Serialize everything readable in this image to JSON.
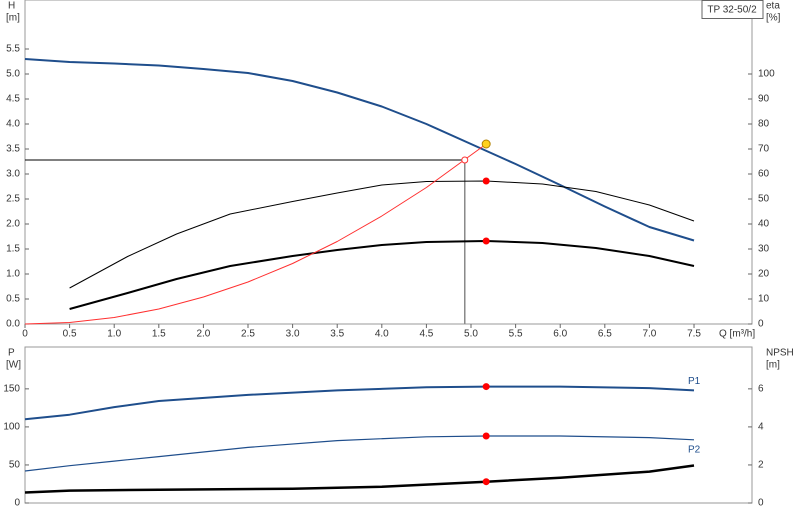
{
  "chart_data": [
    {
      "type": "line",
      "title": "TP 32-50/2",
      "ylabel": "H",
      "yunit": "[m]",
      "y2label": "eta",
      "y2unit": "[%]",
      "xlabel": "Q [m³/h]",
      "xlim": [
        0,
        8.15
      ],
      "ylim": [
        0,
        6.48
      ],
      "y2lim": [
        0,
        129.6
      ],
      "xticks": [
        0,
        0.5,
        {
          "value": 1,
          "label": "1.0"
        },
        1.5,
        {
          "value": 2,
          "label": "2.0"
        },
        2.5,
        {
          "value": 3,
          "label": "3.0"
        },
        3.5,
        {
          "value": 4,
          "label": "4.0"
        },
        4.5,
        {
          "value": 5,
          "label": "5.0"
        },
        5.5,
        {
          "value": 6,
          "label": "6.0"
        },
        6.5,
        {
          "value": 7,
          "label": "7.0"
        },
        7.5
      ],
      "yticks": [
        {
          "value": 0,
          "label": "0.0"
        },
        0.5,
        {
          "value": 1,
          "label": "1.0"
        },
        1.5,
        {
          "value": 2,
          "label": "2.0"
        },
        2.5,
        {
          "value": 3,
          "label": "3.0"
        },
        3.5,
        {
          "value": 4,
          "label": "4.0"
        },
        4.5,
        {
          "value": 5,
          "label": "5.0"
        },
        5.5
      ],
      "y2ticks": [
        0,
        10,
        20,
        30,
        40,
        50,
        60,
        70,
        80,
        90,
        100
      ],
      "series": [
        {
          "color": "#1f4e8c",
          "width": 2,
          "x": [
            0,
            0.5,
            1,
            1.5,
            2,
            2.5,
            3,
            3.5,
            4,
            4.5,
            5,
            5.5,
            6,
            6.5,
            7,
            7.5
          ],
          "values": [
            5.3,
            5.24,
            5.21,
            5.17,
            5.1,
            5.02,
            4.86,
            4.63,
            4.35,
            4.0,
            3.6,
            3.2,
            2.78,
            2.35,
            1.94,
            1.67
          ]
        },
        {
          "color": "#000000",
          "width": 1,
          "axis": "y2",
          "x": [
            0.5,
            1.15,
            1.7,
            2.3,
            3,
            3.5,
            4,
            4.5,
            5.17,
            5.8,
            6.4,
            7,
            7.5
          ],
          "values": [
            14.4,
            27,
            36,
            44,
            49,
            52.4,
            55.6,
            57,
            57.2,
            56,
            53,
            47.6,
            41.2
          ]
        },
        {
          "color": "#000000",
          "width": 2,
          "axis": "y2",
          "x": [
            0.5,
            1.15,
            1.7,
            2.3,
            3,
            3.5,
            4,
            4.5,
            5.17,
            5.8,
            6.4,
            7,
            7.5
          ],
          "values": [
            6,
            12.4,
            18,
            23.2,
            27.2,
            29.6,
            31.6,
            32.8,
            33.2,
            32.4,
            30.4,
            27.2,
            23.2
          ]
        },
        {
          "color": "#ff3030",
          "width": 1,
          "x": [
            0,
            0.5,
            1,
            1.5,
            2,
            2.5,
            3,
            3.5,
            4,
            4.5,
            5.17
          ],
          "values": [
            0,
            0.03,
            0.13,
            0.3,
            0.54,
            0.84,
            1.21,
            1.65,
            2.16,
            2.73,
            3.6
          ]
        }
      ],
      "markers": [
        {
          "x": 4.93,
          "y": 3.28,
          "color": "#ff3030",
          "open": true
        },
        {
          "x": 5.17,
          "y": 57.2,
          "axis": "y2",
          "color": "#ff0000"
        },
        {
          "x": 5.17,
          "y": 33.2,
          "axis": "y2",
          "color": "#ff0000"
        },
        {
          "x": 5.17,
          "y": 3.6,
          "color": "#ffd21e"
        }
      ]
    },
    {
      "type": "line",
      "ylabel": "P",
      "yunit": "[W]",
      "y2label": "NPSH",
      "y2unit": "[m]",
      "xlim": [
        0,
        8.15
      ],
      "ylim": [
        0,
        205
      ],
      "y2lim": [
        0,
        8.2
      ],
      "yticks": [
        0,
        50,
        100,
        150
      ],
      "y2ticks": [
        0,
        2,
        4,
        6
      ],
      "series": [
        {
          "name": "P1",
          "color": "#1f4e8c",
          "width": 2,
          "x": [
            0,
            0.5,
            1,
            1.5,
            2.5,
            3.5,
            4.5,
            5.17,
            6,
            7,
            7.5
          ],
          "values": [
            110,
            116,
            126,
            134,
            142,
            148,
            152,
            153,
            153,
            151,
            148
          ]
        },
        {
          "name": "P2",
          "color": "#1f4e8c",
          "width": 1.2,
          "x": [
            0,
            0.5,
            1,
            1.5,
            2.5,
            3.5,
            4.5,
            5.17,
            6,
            7,
            7.5
          ],
          "values": [
            42,
            49,
            55,
            61,
            73,
            82,
            87,
            88,
            88,
            86,
            83
          ]
        },
        {
          "color": "#000000",
          "width": 2.5,
          "axis": "y2",
          "x": [
            0,
            0.5,
            1.5,
            3,
            4,
            5.17,
            6,
            7,
            7.5
          ],
          "values": [
            0.55,
            0.65,
            0.7,
            0.75,
            0.85,
            1.12,
            1.33,
            1.65,
            1.97
          ]
        }
      ],
      "markers": [
        {
          "x": 5.17,
          "y": 153,
          "color": "#ff0000"
        },
        {
          "x": 5.17,
          "y": 88,
          "color": "#ff0000"
        },
        {
          "x": 5.17,
          "y": 1.12,
          "axis": "y2",
          "color": "#ff0000"
        }
      ]
    }
  ]
}
